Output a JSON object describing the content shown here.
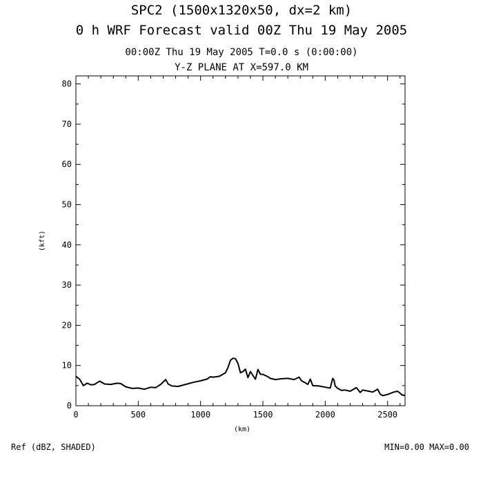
{
  "header": {
    "title_line1": "SPC2 (1500x1320x50, dx=2 km)",
    "title_line2": "0 h WRF Forecast valid 00Z Thu 19 May 2005",
    "time_line": "00:00Z Thu 19 May 2005     T=0.0 s (0:00:00)",
    "plane_line": "Y-Z PLANE AT X=597.0 KM"
  },
  "footer": {
    "field_label": "Ref (dBZ, SHADED)",
    "minmax": "MIN=0.00 MAX=0.00"
  },
  "chart_data": {
    "type": "line",
    "xlabel": "(km)",
    "ylabel": "(kft)",
    "xlim": [
      0,
      2640
    ],
    "ylim": [
      0,
      82
    ],
    "x_ticks": [
      0,
      500,
      1000,
      1500,
      2000,
      2500
    ],
    "y_ticks": [
      0,
      10,
      20,
      30,
      40,
      50,
      60,
      70,
      80
    ],
    "series": [
      {
        "x": [
          0,
          30,
          60,
          90,
          120,
          150,
          190,
          230,
          280,
          330,
          360,
          400,
          450,
          500,
          550,
          600,
          640,
          680,
          720,
          740,
          770,
          820,
          880,
          940,
          1000,
          1050,
          1080,
          1100,
          1150,
          1200,
          1220,
          1240,
          1260,
          1280,
          1300,
          1320,
          1340,
          1360,
          1380,
          1400,
          1420,
          1440,
          1460,
          1480,
          1500,
          1540,
          1560,
          1600,
          1650,
          1700,
          1750,
          1790,
          1810,
          1840,
          1860,
          1880,
          1900,
          1950,
          2000,
          2040,
          2060,
          2070,
          2080,
          2100,
          2130,
          2160,
          2200,
          2250,
          2280,
          2300,
          2350,
          2380,
          2420,
          2440,
          2460,
          2500,
          2550,
          2580,
          2600,
          2620,
          2640
        ],
        "y": [
          7.3,
          6.6,
          5.0,
          5.6,
          5.2,
          5.3,
          6.1,
          5.4,
          5.3,
          5.6,
          5.5,
          4.7,
          4.3,
          4.4,
          4.1,
          4.6,
          4.5,
          5.3,
          6.5,
          5.4,
          4.9,
          4.8,
          5.3,
          5.8,
          6.2,
          6.6,
          7.2,
          7.1,
          7.3,
          8.2,
          9.5,
          11.3,
          11.8,
          11.7,
          10.5,
          8.2,
          8.5,
          9.1,
          7.0,
          8.5,
          7.5,
          6.6,
          9.0,
          7.8,
          7.8,
          7.2,
          6.8,
          6.5,
          6.7,
          6.8,
          6.5,
          7.1,
          6.2,
          5.7,
          5.3,
          6.6,
          5.0,
          4.9,
          4.6,
          4.4,
          6.8,
          6.4,
          4.9,
          4.3,
          3.8,
          3.9,
          3.6,
          4.5,
          3.3,
          3.9,
          3.6,
          3.4,
          4.1,
          2.9,
          2.5,
          2.8,
          3.4,
          3.6,
          3.1,
          2.6,
          2.6
        ]
      }
    ],
    "grid": false
  }
}
